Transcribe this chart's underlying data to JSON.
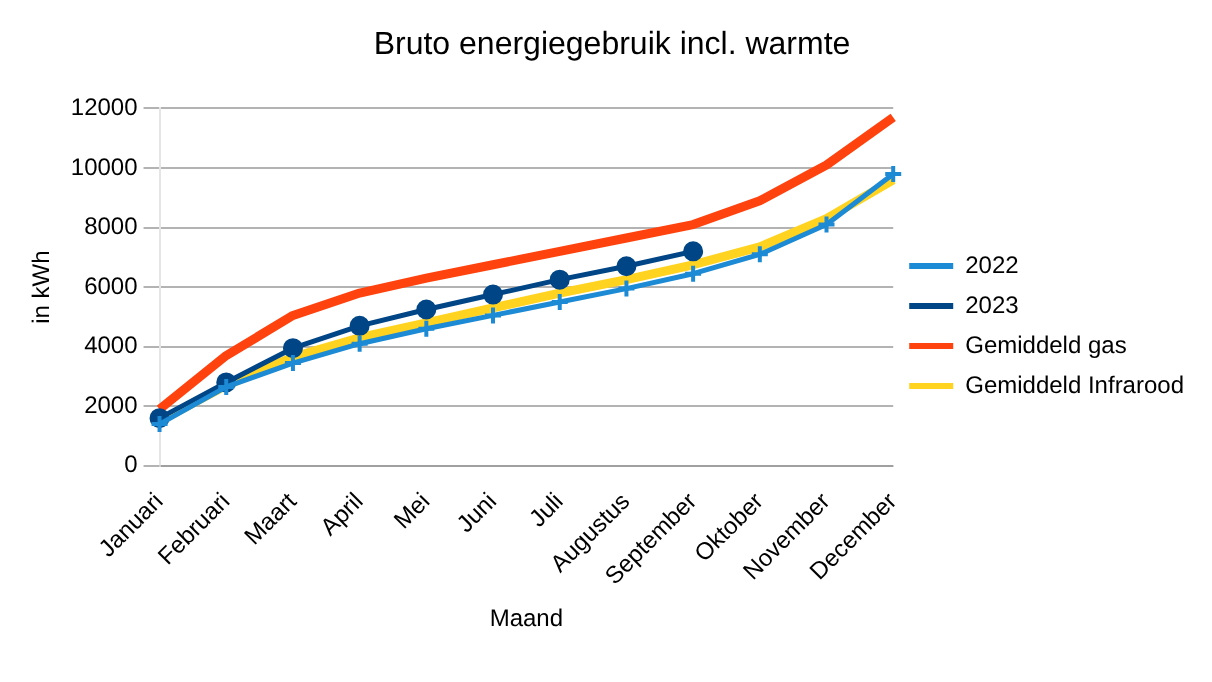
{
  "chart_data": {
    "type": "line",
    "title": "Bruto energiegebruik incl. warmte",
    "xlabel": "Maand",
    "ylabel": "in kWh",
    "categories": [
      "Januari",
      "Februari",
      "Maart",
      "April",
      "Mei",
      "Juni",
      "Juli",
      "Augustus",
      "September",
      "Oktober",
      "November",
      "December"
    ],
    "ylim": [
      0,
      12000
    ],
    "yticks": [
      0,
      2000,
      4000,
      6000,
      8000,
      10000,
      12000
    ],
    "grid": "y",
    "legend": "right",
    "series": [
      {
        "name": "2022",
        "color": "#1c8ad4",
        "marker": "cross",
        "values": [
          1400,
          2650,
          3450,
          4100,
          4600,
          5050,
          5500,
          5950,
          6450,
          7100,
          8100,
          9800
        ]
      },
      {
        "name": "2023",
        "color": "#004586",
        "marker": "circle",
        "values": [
          1600,
          2800,
          3950,
          4700,
          5250,
          5750,
          6250,
          6700,
          7200,
          null,
          null,
          null
        ]
      },
      {
        "name": "Gemiddeld gas",
        "color": "#ff420e",
        "marker": "none",
        "values": [
          1900,
          3700,
          5050,
          5800,
          6300,
          6750,
          7200,
          7650,
          8100,
          8900,
          10100,
          11700
        ]
      },
      {
        "name": "Gemiddeld Infrarood",
        "color": "#ffd320",
        "marker": "none",
        "values": [
          1500,
          2700,
          3650,
          4300,
          4800,
          5300,
          5800,
          6250,
          6750,
          7350,
          8300,
          9600
        ]
      }
    ]
  }
}
